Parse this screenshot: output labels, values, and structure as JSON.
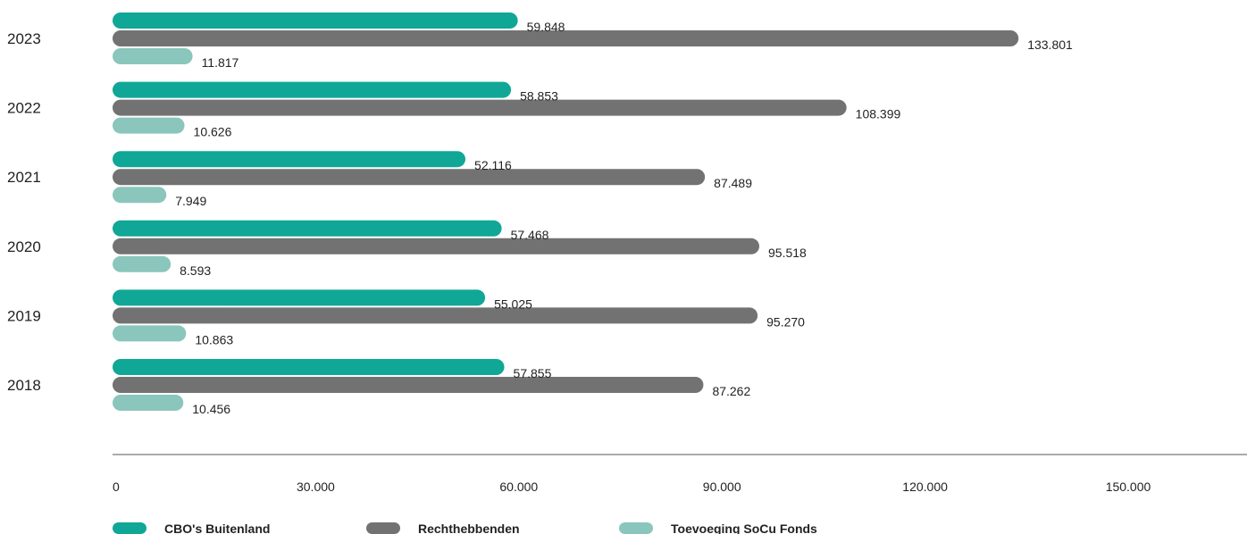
{
  "chart_data": {
    "type": "bar",
    "orientation": "horizontal",
    "categories": [
      "2023",
      "2022",
      "2021",
      "2020",
      "2019",
      "2018"
    ],
    "series": [
      {
        "name": "CBO's Buitenland",
        "color": "#10a796",
        "values": [
          59848,
          58853,
          52116,
          57468,
          55025,
          57855
        ],
        "labels": [
          "59.848",
          "58.853",
          "52.116",
          "57.468",
          "55.025",
          "57.855"
        ]
      },
      {
        "name": "Rechthebbenden",
        "color": "#727272",
        "values": [
          133801,
          108399,
          87489,
          95518,
          95270,
          87262
        ],
        "labels": [
          "133.801",
          "108.399",
          "87.489",
          "95.518",
          "95.270",
          "87.262"
        ]
      },
      {
        "name": "Toevoeging SoCu Fonds",
        "color": "#8ac6bb",
        "values": [
          11817,
          10626,
          7949,
          8593,
          10863,
          10456
        ],
        "labels": [
          "11.817",
          "10.626",
          "7.949",
          "8.593",
          "10.863",
          "10.456"
        ]
      }
    ],
    "x_ticks": [
      0,
      30000,
      60000,
      90000,
      120000,
      150000
    ],
    "x_tick_labels": [
      "0",
      "30.000",
      "60.000",
      "90.000",
      "120.000",
      "150.000"
    ],
    "xlim": [
      0,
      160000
    ],
    "grid": false,
    "legend": "bottom-left"
  }
}
